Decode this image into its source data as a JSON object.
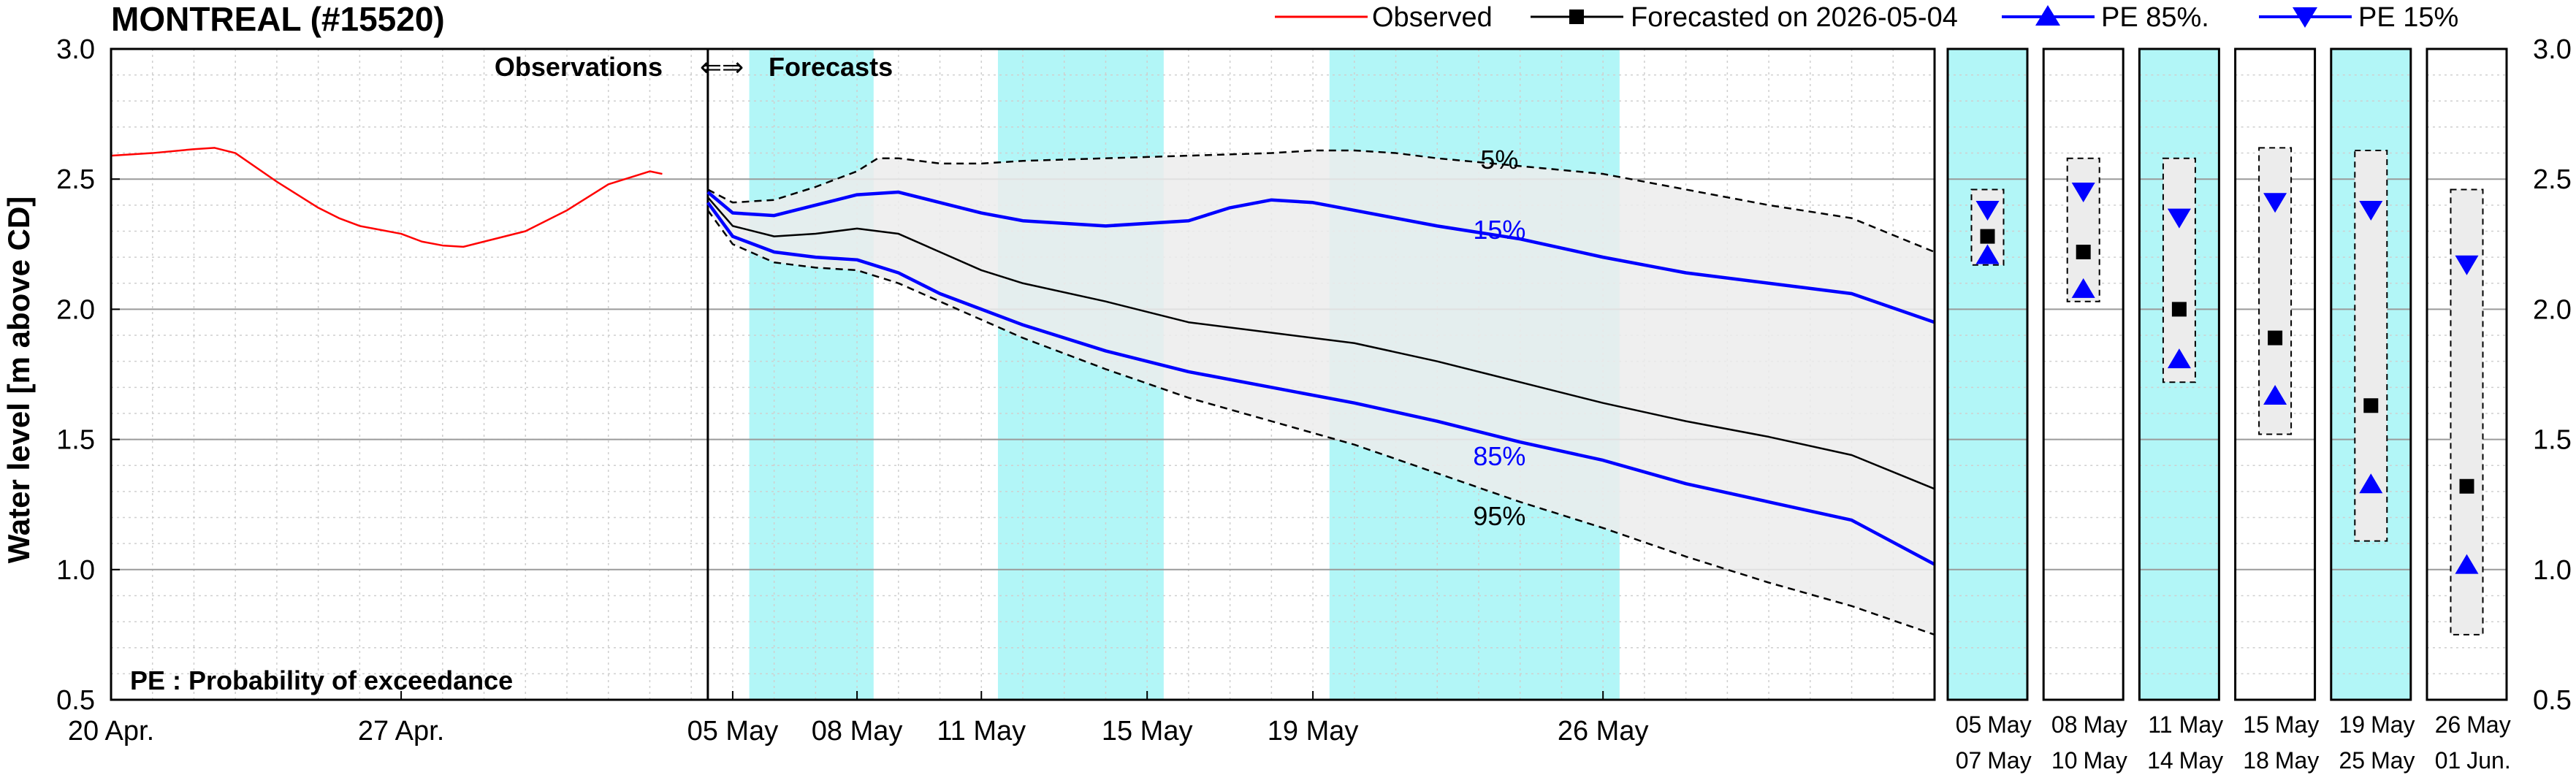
{
  "title": "MONTREAL (#15520)",
  "legend": [
    {
      "label": "Observed",
      "color": "#ff0000",
      "marker": "none"
    },
    {
      "label": "Forecasted on 2026-05-04",
      "color": "#000000",
      "marker": "square"
    },
    {
      "label": "PE 85%.",
      "color": "#0000ff",
      "marker": "triangle-up"
    },
    {
      "label": "PE 15%",
      "color": "#0000ff",
      "marker": "triangle-down"
    }
  ],
  "colors": {
    "observed": "#ff0000",
    "forecast": "#000000",
    "pe": "#0000ff",
    "band_fill": "#ececec",
    "highlight": "#b2f6f7",
    "grid": "#bdbdbd"
  },
  "annotations": {
    "observations": "Observations",
    "arrows": "⇐⇒",
    "forecasts": "Forecasts",
    "note": "PE : Probability of exceedance"
  },
  "chart_data": {
    "type": "line",
    "title": "MONTREAL (#15520)",
    "ylabel": "Water level [m above CD]",
    "ylim": [
      0.5,
      3.0
    ],
    "yticks": [
      "0.5",
      "1.0",
      "1.5",
      "2.0",
      "2.5",
      "3.0"
    ],
    "xticks": [
      {
        "day": 0,
        "label": "20 Apr."
      },
      {
        "day": 7,
        "label": "27 Apr."
      },
      {
        "day": 15,
        "label": "05 May"
      },
      {
        "day": 18,
        "label": "08 May"
      },
      {
        "day": 21,
        "label": "11 May"
      },
      {
        "day": 25,
        "label": "15 May"
      },
      {
        "day": 29,
        "label": "19 May"
      },
      {
        "day": 36,
        "label": "26 May"
      }
    ],
    "xrange_days": [
      0,
      44
    ],
    "forecast_start_day": 14.4,
    "highlight_bands_days": [
      [
        15.4,
        18.4
      ],
      [
        21.4,
        25.4
      ],
      [
        29.4,
        36.4
      ]
    ],
    "series": [
      {
        "name": "Observed",
        "x": [
          0,
          1,
          2,
          2.5,
          3,
          4,
          5,
          5.5,
          6,
          7,
          7.5,
          8,
          8.5,
          9,
          10,
          11,
          12,
          13,
          13.3
        ],
        "y": [
          2.59,
          2.6,
          2.615,
          2.62,
          2.6,
          2.49,
          2.39,
          2.35,
          2.32,
          2.29,
          2.26,
          2.245,
          2.24,
          2.26,
          2.3,
          2.38,
          2.48,
          2.53,
          2.52
        ]
      },
      {
        "name": "Forecasted on 2026-05-04",
        "x": [
          14.4,
          15,
          16,
          17,
          18,
          19,
          20,
          21,
          22,
          24,
          26,
          28,
          30,
          32,
          34,
          36,
          38,
          40,
          42,
          44
        ],
        "y": [
          2.43,
          2.32,
          2.28,
          2.29,
          2.31,
          2.29,
          2.22,
          2.15,
          2.1,
          2.03,
          1.95,
          1.91,
          1.87,
          1.8,
          1.72,
          1.64,
          1.57,
          1.51,
          1.44,
          1.31
        ]
      },
      {
        "name": "15%",
        "x": [
          14.4,
          15,
          16,
          17,
          18,
          19,
          20,
          21,
          22,
          24,
          26,
          27,
          28,
          29,
          30,
          31,
          32,
          34,
          36,
          38,
          40,
          42,
          44
        ],
        "y": [
          2.45,
          2.37,
          2.36,
          2.4,
          2.44,
          2.45,
          2.41,
          2.37,
          2.34,
          2.32,
          2.34,
          2.39,
          2.42,
          2.41,
          2.38,
          2.35,
          2.32,
          2.27,
          2.2,
          2.14,
          2.1,
          2.06,
          1.95
        ]
      },
      {
        "name": "85%",
        "x": [
          14.4,
          15,
          16,
          17,
          18,
          19,
          20,
          21,
          22,
          24,
          26,
          28,
          30,
          32,
          34,
          36,
          38,
          40,
          42,
          44
        ],
        "y": [
          2.41,
          2.28,
          2.22,
          2.2,
          2.19,
          2.14,
          2.06,
          2.0,
          1.94,
          1.84,
          1.76,
          1.7,
          1.64,
          1.57,
          1.49,
          1.42,
          1.33,
          1.26,
          1.19,
          1.02
        ]
      },
      {
        "name": "5%",
        "x": [
          14.4,
          15,
          16,
          17,
          18,
          18.5,
          19,
          20,
          21,
          22,
          24,
          26,
          28,
          29,
          30,
          31,
          32,
          34,
          36,
          38,
          40,
          42,
          44
        ],
        "y": [
          2.46,
          2.41,
          2.42,
          2.47,
          2.53,
          2.58,
          2.58,
          2.56,
          2.56,
          2.57,
          2.58,
          2.59,
          2.6,
          2.61,
          2.61,
          2.6,
          2.58,
          2.55,
          2.52,
          2.46,
          2.4,
          2.35,
          2.22
        ]
      },
      {
        "name": "95%",
        "x": [
          14.4,
          15,
          16,
          17,
          18,
          19,
          20,
          21,
          22,
          24,
          26,
          28,
          30,
          32,
          34,
          36,
          38,
          40,
          42,
          44
        ],
        "y": [
          2.38,
          2.25,
          2.18,
          2.16,
          2.15,
          2.1,
          2.03,
          1.96,
          1.89,
          1.77,
          1.66,
          1.57,
          1.48,
          1.37,
          1.26,
          1.16,
          1.05,
          0.95,
          0.86,
          0.75
        ]
      }
    ],
    "curve_labels": [
      {
        "text": "5%",
        "color": "#000000",
        "day": 33.5,
        "y": 2.54
      },
      {
        "text": "15%",
        "color": "#0000ff",
        "day": 33.5,
        "y": 2.27
      },
      {
        "text": "85%",
        "color": "#0000ff",
        "day": 33.5,
        "y": 1.4
      },
      {
        "text": "95%",
        "color": "#000000",
        "day": 33.5,
        "y": 1.17
      }
    ],
    "periods": [
      {
        "top": "05",
        "top_mon": "May",
        "bottom": "07",
        "bottom_mon": "May",
        "highlight": true,
        "high": 2.46,
        "low": 2.17,
        "mean": 2.28,
        "pe15": 2.38,
        "pe85": 2.21
      },
      {
        "top": "08",
        "top_mon": "May",
        "bottom": "10",
        "bottom_mon": "May",
        "highlight": false,
        "high": 2.58,
        "low": 2.03,
        "mean": 2.22,
        "pe15": 2.45,
        "pe85": 2.08
      },
      {
        "top": "11",
        "top_mon": "May",
        "bottom": "14",
        "bottom_mon": "May",
        "highlight": true,
        "high": 2.58,
        "low": 1.72,
        "mean": 2.0,
        "pe15": 2.35,
        "pe85": 1.81
      },
      {
        "top": "15",
        "top_mon": "May",
        "bottom": "18",
        "bottom_mon": "May",
        "highlight": false,
        "high": 2.62,
        "low": 1.52,
        "mean": 1.89,
        "pe15": 2.41,
        "pe85": 1.67
      },
      {
        "top": "19",
        "top_mon": "May",
        "bottom": "25",
        "bottom_mon": "May",
        "highlight": true,
        "high": 2.61,
        "low": 1.11,
        "mean": 1.63,
        "pe15": 2.38,
        "pe85": 1.33
      },
      {
        "top": "26",
        "top_mon": "May",
        "bottom": "01",
        "bottom_mon": "Jun.",
        "highlight": false,
        "high": 2.46,
        "low": 0.75,
        "mean": 1.32,
        "pe15": 2.17,
        "pe85": 1.02
      }
    ]
  }
}
